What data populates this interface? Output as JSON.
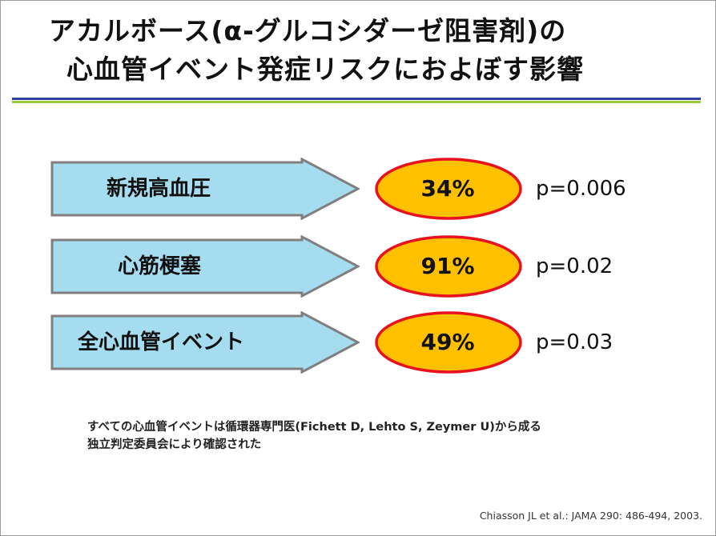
{
  "title": {
    "line1": "アカルボース(α-グルコシダーゼ阻害剤)の",
    "line2": "心血管イベント発症リスクにおよぼす影響"
  },
  "colors": {
    "arrow_fill": "#a6dcef",
    "arrow_stroke": "#7f7f7f",
    "oval_fill": "#ffc000",
    "oval_stroke": "#e8121e",
    "rule_blue": "#2e3d9e",
    "rule_green": "#9ac93b"
  },
  "results": [
    {
      "label": "新規高血圧",
      "value": "34%",
      "p_value": "p=0.006"
    },
    {
      "label": "心筋梗塞",
      "value": "91%",
      "p_value": "p=0.02"
    },
    {
      "label": "全心血管イベント",
      "value": "49%",
      "p_value": "p=0.03"
    }
  ],
  "note": {
    "line1": "すべての心血管イベントは循環器専門医(Fichett  D, Lehto S, Zeymer U)から成る",
    "line2": "独立判定委員会により確認された"
  },
  "citation": "Chiasson JL et al.: JAMA 290: 486-494, 2003."
}
